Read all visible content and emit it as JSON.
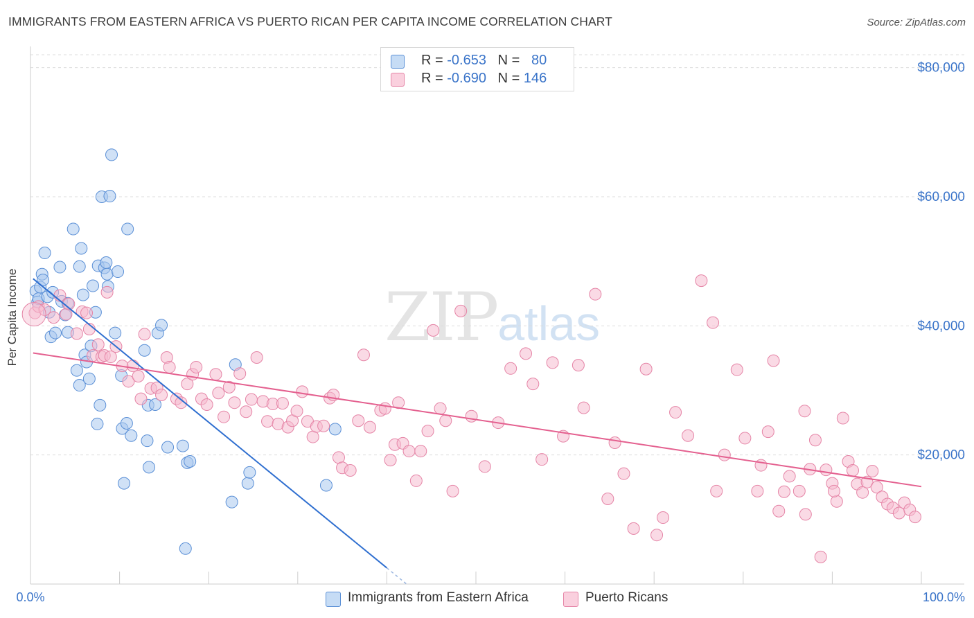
{
  "title": "IMMIGRANTS FROM EASTERN AFRICA VS PUERTO RICAN PER CAPITA INCOME CORRELATION CHART",
  "source": "Source: ZipAtlas.com",
  "watermark": {
    "zip": "ZIP",
    "atlas": "atlas"
  },
  "colors": {
    "blue_fill": "#a9c9ee",
    "blue_stroke": "#5a8fd6",
    "blue_line": "#2f6fd0",
    "pink_fill": "#f6bcd0",
    "pink_stroke": "#e584a6",
    "pink_line": "#e4608f",
    "axis_text": "#3a74c9"
  },
  "legend_top": {
    "rows": [
      {
        "r_label": "R = ",
        "r_value": "-0.653",
        "n_label": "N = ",
        "n_value": "80"
      },
      {
        "r_label": "R = ",
        "r_value": "-0.690",
        "n_label": "N = ",
        "n_value": "146"
      }
    ]
  },
  "legend_bottom": [
    "Immigrants from Eastern Africa",
    "Puerto Ricans"
  ],
  "chart_data": {
    "type": "scatter",
    "title": "IMMIGRANTS FROM EASTERN AFRICA VS PUERTO RICAN PER CAPITA INCOME CORRELATION CHART",
    "xlabel": "",
    "ylabel": "Per Capita Income",
    "xlim": [
      0,
      100
    ],
    "ylim": [
      0,
      82000
    ],
    "x_tick_labels": [
      "0.0%",
      "100.0%"
    ],
    "y_ticks": [
      20000,
      40000,
      60000,
      80000
    ],
    "y_tick_labels": [
      "$20,000",
      "$40,000",
      "$60,000",
      "$80,000"
    ],
    "grid": "horizontal dashed",
    "legend_position": "top-center",
    "series": [
      {
        "name": "Immigrants from Eastern Africa",
        "r": -0.653,
        "n": 80,
        "trend": {
          "x": [
            0.3,
            40
          ],
          "y": [
            47300,
            2500
          ]
        },
        "points": [
          [
            0.6,
            45400
          ],
          [
            0.8,
            43700
          ],
          [
            0.9,
            44200
          ],
          [
            1.1,
            46000
          ],
          [
            1.3,
            48000
          ],
          [
            1.4,
            47100
          ],
          [
            1.6,
            51300
          ],
          [
            1.9,
            44500
          ],
          [
            2.1,
            42100
          ],
          [
            2.3,
            38300
          ],
          [
            2.5,
            45200
          ],
          [
            2.8,
            38900
          ],
          [
            3.3,
            49100
          ],
          [
            3.5,
            43800
          ],
          [
            3.9,
            41700
          ],
          [
            4.2,
            43500
          ],
          [
            4.2,
            39000
          ],
          [
            4.8,
            55000
          ],
          [
            5.2,
            33100
          ],
          [
            5.5,
            30800
          ],
          [
            5.5,
            49200
          ],
          [
            5.7,
            52000
          ],
          [
            5.9,
            44800
          ],
          [
            6.1,
            35500
          ],
          [
            6.3,
            34400
          ],
          [
            6.6,
            31800
          ],
          [
            6.8,
            36900
          ],
          [
            7.0,
            46200
          ],
          [
            7.3,
            42100
          ],
          [
            7.5,
            24800
          ],
          [
            7.6,
            49300
          ],
          [
            7.8,
            27700
          ],
          [
            8.0,
            60000
          ],
          [
            8.3,
            49000
          ],
          [
            8.5,
            49800
          ],
          [
            8.6,
            48000
          ],
          [
            8.7,
            46100
          ],
          [
            8.9,
            60100
          ],
          [
            9.1,
            66500
          ],
          [
            9.5,
            38900
          ],
          [
            9.8,
            48400
          ],
          [
            10.2,
            32300
          ],
          [
            10.3,
            24100
          ],
          [
            10.5,
            15600
          ],
          [
            10.8,
            24900
          ],
          [
            10.9,
            55000
          ],
          [
            11.3,
            23000
          ],
          [
            12.8,
            36200
          ],
          [
            13.1,
            22200
          ],
          [
            13.2,
            27700
          ],
          [
            13.3,
            18100
          ],
          [
            14.0,
            27800
          ],
          [
            14.3,
            38900
          ],
          [
            14.7,
            40100
          ],
          [
            15.4,
            21200
          ],
          [
            17.1,
            21400
          ],
          [
            17.6,
            18800
          ],
          [
            17.9,
            19000
          ],
          [
            22.6,
            12700
          ],
          [
            23.0,
            34000
          ],
          [
            24.4,
            15600
          ],
          [
            24.6,
            17300
          ],
          [
            33.2,
            15300
          ],
          [
            34.2,
            24000
          ],
          [
            17.4,
            5500
          ]
        ]
      },
      {
        "name": "Puerto Ricans",
        "r": -0.69,
        "n": 146,
        "trend": {
          "x": [
            0.3,
            100
          ],
          "y": [
            35800,
            15100
          ]
        },
        "points": [
          [
            0.5,
            42000
          ],
          [
            0.9,
            43000
          ],
          [
            1.6,
            42500
          ],
          [
            2.6,
            41300
          ],
          [
            3.3,
            44700
          ],
          [
            4.0,
            41800
          ],
          [
            4.3,
            43400
          ],
          [
            5.2,
            38800
          ],
          [
            5.8,
            42200
          ],
          [
            6.3,
            42000
          ],
          [
            6.6,
            39500
          ],
          [
            7.0,
            35400
          ],
          [
            7.6,
            37100
          ],
          [
            8.0,
            35200
          ],
          [
            8.3,
            35400
          ],
          [
            8.6,
            45200
          ],
          [
            9.0,
            35200
          ],
          [
            9.6,
            36800
          ],
          [
            10.3,
            33800
          ],
          [
            11.0,
            31400
          ],
          [
            11.5,
            33800
          ],
          [
            12.1,
            32200
          ],
          [
            12.4,
            28700
          ],
          [
            12.8,
            38700
          ],
          [
            13.5,
            30300
          ],
          [
            14.2,
            30400
          ],
          [
            14.7,
            29300
          ],
          [
            15.3,
            35100
          ],
          [
            15.6,
            33600
          ],
          [
            16.4,
            28700
          ],
          [
            16.9,
            28100
          ],
          [
            17.6,
            31000
          ],
          [
            18.2,
            32500
          ],
          [
            18.6,
            33600
          ],
          [
            19.2,
            28700
          ],
          [
            19.8,
            27800
          ],
          [
            20.8,
            32500
          ],
          [
            21.1,
            29600
          ],
          [
            21.7,
            25900
          ],
          [
            22.3,
            30500
          ],
          [
            22.9,
            28100
          ],
          [
            23.5,
            32600
          ],
          [
            24.2,
            26700
          ],
          [
            24.8,
            28600
          ],
          [
            25.4,
            35100
          ],
          [
            26.1,
            28300
          ],
          [
            26.6,
            25200
          ],
          [
            27.2,
            27900
          ],
          [
            27.8,
            24800
          ],
          [
            28.3,
            28000
          ],
          [
            28.9,
            24300
          ],
          [
            29.4,
            25300
          ],
          [
            29.9,
            26800
          ],
          [
            30.5,
            29800
          ],
          [
            31.1,
            25200
          ],
          [
            31.7,
            22800
          ],
          [
            32.1,
            24400
          ],
          [
            32.9,
            24500
          ],
          [
            33.6,
            28800
          ],
          [
            34.0,
            29300
          ],
          [
            34.6,
            19600
          ],
          [
            35.0,
            18000
          ],
          [
            35.9,
            17600
          ],
          [
            36.8,
            25300
          ],
          [
            37.4,
            35500
          ],
          [
            38.1,
            24300
          ],
          [
            39.3,
            26900
          ],
          [
            39.8,
            27200
          ],
          [
            40.4,
            19200
          ],
          [
            40.9,
            21600
          ],
          [
            41.3,
            28100
          ],
          [
            41.8,
            21800
          ],
          [
            42.5,
            20600
          ],
          [
            43.3,
            16000
          ],
          [
            43.8,
            20600
          ],
          [
            44.6,
            23700
          ],
          [
            45.2,
            39300
          ],
          [
            46.0,
            27200
          ],
          [
            46.6,
            25300
          ],
          [
            47.4,
            14400
          ],
          [
            48.3,
            42300
          ],
          [
            49.5,
            26000
          ],
          [
            51.0,
            18200
          ],
          [
            52.5,
            25000
          ],
          [
            53.9,
            33400
          ],
          [
            55.6,
            35700
          ],
          [
            56.4,
            31000
          ],
          [
            57.4,
            19300
          ],
          [
            58.6,
            34300
          ],
          [
            59.8,
            22900
          ],
          [
            61.5,
            33900
          ],
          [
            62.1,
            27300
          ],
          [
            63.4,
            44900
          ],
          [
            64.8,
            13200
          ],
          [
            65.6,
            21900
          ],
          [
            66.6,
            17100
          ],
          [
            67.7,
            8600
          ],
          [
            69.1,
            33300
          ],
          [
            70.3,
            7600
          ],
          [
            71.0,
            10300
          ],
          [
            72.4,
            26600
          ],
          [
            73.8,
            23000
          ],
          [
            75.3,
            47000
          ],
          [
            76.6,
            40500
          ],
          [
            77.0,
            14400
          ],
          [
            77.9,
            20000
          ],
          [
            79.3,
            33200
          ],
          [
            80.2,
            22600
          ],
          [
            81.6,
            14400
          ],
          [
            82.0,
            18400
          ],
          [
            82.8,
            23600
          ],
          [
            83.4,
            34600
          ],
          [
            84.0,
            11300
          ],
          [
            84.6,
            14300
          ],
          [
            85.2,
            16700
          ],
          [
            86.3,
            14400
          ],
          [
            86.9,
            26800
          ],
          [
            87.5,
            17800
          ],
          [
            88.1,
            22300
          ],
          [
            88.7,
            4200
          ],
          [
            89.3,
            17700
          ],
          [
            90.0,
            15600
          ],
          [
            90.5,
            12800
          ],
          [
            91.2,
            25700
          ],
          [
            91.8,
            19000
          ],
          [
            92.3,
            17600
          ],
          [
            92.8,
            15500
          ],
          [
            93.4,
            14200
          ],
          [
            93.9,
            15800
          ],
          [
            94.5,
            17500
          ],
          [
            95.0,
            15000
          ],
          [
            95.6,
            13500
          ],
          [
            96.2,
            12400
          ],
          [
            96.8,
            11800
          ],
          [
            97.5,
            11000
          ],
          [
            98.1,
            12600
          ],
          [
            98.7,
            11500
          ],
          [
            99.3,
            10400
          ],
          [
            87.0,
            10800
          ],
          [
            90.2,
            14400
          ]
        ]
      }
    ]
  }
}
